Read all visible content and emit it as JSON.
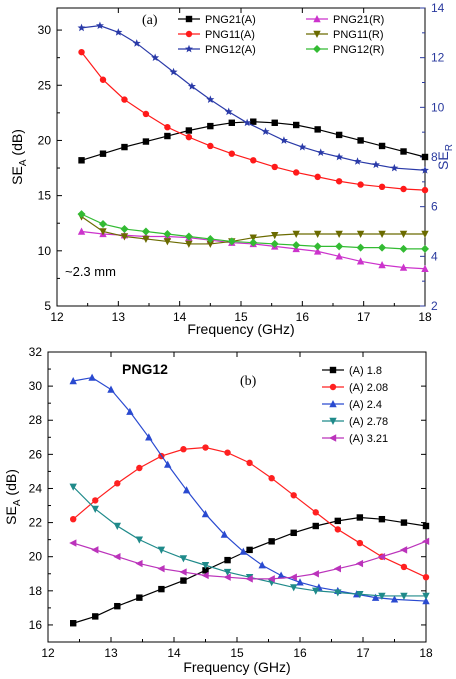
{
  "chart_data": [
    {
      "type": "line",
      "panel_label": "(a)",
      "annotation": "~2.3 mm",
      "xlabel": "Frequency (GHz)",
      "ylabel_main": "SE",
      "ylabel_sub": "A",
      "ylabel_unit": " (dB)",
      "y2label_main": "SE",
      "y2label_sub": "R",
      "xlim": [
        12,
        18
      ],
      "ylim": [
        5,
        32
      ],
      "y2lim": [
        2,
        14
      ],
      "xticks": [
        "12",
        "13",
        "14",
        "15",
        "16",
        "17",
        "18"
      ],
      "yticks": [
        "5",
        "10",
        "15",
        "20",
        "25",
        "30"
      ],
      "y2ticks": [
        "2",
        "4",
        "6",
        "8",
        "10",
        "12",
        "14"
      ],
      "grid": false,
      "legend_position": "top-right",
      "series": [
        {
          "name": "PNG21(A)",
          "axis": "left",
          "color": "#000000",
          "marker": "square",
          "x": [
            12.4,
            12.75,
            13.1,
            13.45,
            13.8,
            14.15,
            14.5,
            14.85,
            15.2,
            15.55,
            15.9,
            16.25,
            16.6,
            16.95,
            17.3,
            17.65,
            18.0
          ],
          "y": [
            18.2,
            18.8,
            19.4,
            19.9,
            20.4,
            20.9,
            21.3,
            21.6,
            21.7,
            21.6,
            21.4,
            21.0,
            20.5,
            20.0,
            19.5,
            19.0,
            18.5
          ]
        },
        {
          "name": "PNG11(A)",
          "axis": "left",
          "color": "#ff1a1a",
          "marker": "circle",
          "x": [
            12.4,
            12.75,
            13.1,
            13.45,
            13.8,
            14.15,
            14.5,
            14.85,
            15.2,
            15.55,
            15.9,
            16.25,
            16.6,
            16.95,
            17.3,
            17.65,
            18.0
          ],
          "y": [
            28.0,
            25.5,
            23.7,
            22.4,
            21.2,
            20.3,
            19.5,
            18.8,
            18.2,
            17.6,
            17.1,
            16.7,
            16.3,
            16.0,
            15.8,
            15.6,
            15.5
          ]
        },
        {
          "name": "PNG12(A)",
          "axis": "left",
          "color": "#2a3aa8",
          "marker": "star",
          "x": [
            12.4,
            12.7,
            13.0,
            13.3,
            13.6,
            13.9,
            14.2,
            14.5,
            14.8,
            15.1,
            15.4,
            15.7,
            16.0,
            16.3,
            16.6,
            16.9,
            17.2,
            17.5,
            18.0
          ],
          "y": [
            30.2,
            30.4,
            29.8,
            28.8,
            27.5,
            26.2,
            24.9,
            23.7,
            22.6,
            21.6,
            20.8,
            20.0,
            19.4,
            18.9,
            18.5,
            18.1,
            17.8,
            17.5,
            17.3
          ]
        },
        {
          "name": "PNG21(R)",
          "axis": "right",
          "color": "#cc33cc",
          "marker": "triangle-up",
          "x": [
            12.4,
            12.75,
            13.1,
            13.45,
            13.8,
            14.15,
            14.5,
            14.85,
            15.2,
            15.55,
            15.9,
            16.25,
            16.6,
            16.95,
            17.3,
            17.65,
            18.0
          ],
          "y": [
            5.0,
            4.9,
            4.85,
            4.8,
            4.8,
            4.75,
            4.65,
            4.55,
            4.5,
            4.4,
            4.3,
            4.2,
            4.0,
            3.8,
            3.65,
            3.55,
            3.5
          ]
        },
        {
          "name": "PNG11(R)",
          "axis": "right",
          "color": "#6b6b00",
          "marker": "triangle-down",
          "x": [
            12.4,
            12.75,
            13.1,
            13.45,
            13.8,
            14.15,
            14.5,
            14.85,
            15.2,
            15.55,
            15.9,
            16.25,
            16.6,
            16.95,
            17.3,
            17.65,
            18.0
          ],
          "y": [
            5.6,
            5.0,
            4.8,
            4.7,
            4.6,
            4.5,
            4.5,
            4.6,
            4.75,
            4.85,
            4.9,
            4.9,
            4.9,
            4.9,
            4.9,
            4.9,
            4.9
          ]
        },
        {
          "name": "PNG12(R)",
          "axis": "right",
          "color": "#33bb33",
          "marker": "diamond",
          "x": [
            12.4,
            12.75,
            13.1,
            13.45,
            13.8,
            14.15,
            14.5,
            14.85,
            15.2,
            15.55,
            15.9,
            16.25,
            16.6,
            16.95,
            17.3,
            17.65,
            18.0
          ],
          "y": [
            5.7,
            5.3,
            5.1,
            5.0,
            4.9,
            4.8,
            4.7,
            4.6,
            4.55,
            4.5,
            4.45,
            4.4,
            4.4,
            4.35,
            4.35,
            4.3,
            4.3
          ]
        }
      ]
    },
    {
      "type": "line",
      "title": "PNG12",
      "panel_label": "(b)",
      "xlabel": "Frequency (GHz)",
      "ylabel_main": "SE",
      "ylabel_sub": "A",
      "ylabel_unit": " (dB)",
      "xlim": [
        12,
        18
      ],
      "ylim": [
        15,
        32
      ],
      "xticks": [
        "12",
        "13",
        "14",
        "15",
        "16",
        "17",
        "18"
      ],
      "yticks": [
        "16",
        "18",
        "20",
        "22",
        "24",
        "26",
        "28",
        "30",
        "32"
      ],
      "grid": false,
      "legend_position": "top-right",
      "series": [
        {
          "name": "(A) 1.8",
          "color": "#000000",
          "marker": "square",
          "x": [
            12.4,
            12.75,
            13.1,
            13.45,
            13.8,
            14.15,
            14.5,
            14.85,
            15.2,
            15.55,
            15.9,
            16.25,
            16.6,
            16.95,
            17.3,
            17.65,
            18.0
          ],
          "y": [
            16.1,
            16.5,
            17.1,
            17.6,
            18.1,
            18.6,
            19.2,
            19.8,
            20.4,
            20.9,
            21.4,
            21.8,
            22.1,
            22.3,
            22.2,
            22.0,
            21.8
          ]
        },
        {
          "name": "(A) 2.08",
          "color": "#ff2020",
          "marker": "circle",
          "x": [
            12.4,
            12.75,
            13.1,
            13.45,
            13.8,
            14.15,
            14.5,
            14.85,
            15.2,
            15.55,
            15.9,
            16.25,
            16.6,
            16.95,
            17.3,
            17.65,
            18.0
          ],
          "y": [
            22.2,
            23.3,
            24.3,
            25.2,
            25.9,
            26.3,
            26.4,
            26.1,
            25.5,
            24.6,
            23.6,
            22.6,
            21.6,
            20.8,
            20.0,
            19.4,
            18.8
          ]
        },
        {
          "name": "(A) 2.4",
          "color": "#2a4ad0",
          "marker": "triangle-up",
          "x": [
            12.4,
            12.7,
            13.0,
            13.3,
            13.6,
            13.9,
            14.2,
            14.5,
            14.8,
            15.1,
            15.4,
            15.7,
            16.0,
            16.3,
            16.6,
            16.9,
            17.2,
            17.5,
            18.0
          ],
          "y": [
            30.3,
            30.5,
            29.8,
            28.5,
            27.0,
            25.4,
            23.9,
            22.5,
            21.3,
            20.3,
            19.5,
            18.9,
            18.5,
            18.2,
            18.0,
            17.8,
            17.6,
            17.5,
            17.4
          ]
        },
        {
          "name": "(A) 2.78",
          "color": "#1f8a8a",
          "marker": "triangle-down",
          "x": [
            12.4,
            12.75,
            13.1,
            13.45,
            13.8,
            14.15,
            14.5,
            14.85,
            15.2,
            15.55,
            15.9,
            16.25,
            16.6,
            16.95,
            17.3,
            17.65,
            18.0
          ],
          "y": [
            24.1,
            22.8,
            21.8,
            21.0,
            20.4,
            19.9,
            19.5,
            19.1,
            18.8,
            18.5,
            18.2,
            18.0,
            17.9,
            17.8,
            17.7,
            17.7,
            17.7
          ]
        },
        {
          "name": "(A) 3.21",
          "color": "#bb33bb",
          "marker": "triangle-left",
          "x": [
            12.4,
            12.75,
            13.1,
            13.45,
            13.8,
            14.15,
            14.5,
            14.85,
            15.2,
            15.55,
            15.9,
            16.25,
            16.6,
            16.95,
            17.3,
            17.65,
            18.0
          ],
          "y": [
            20.8,
            20.4,
            20.0,
            19.6,
            19.3,
            19.1,
            18.9,
            18.8,
            18.7,
            18.7,
            18.8,
            19.0,
            19.3,
            19.6,
            20.0,
            20.4,
            20.9
          ]
        }
      ]
    }
  ]
}
